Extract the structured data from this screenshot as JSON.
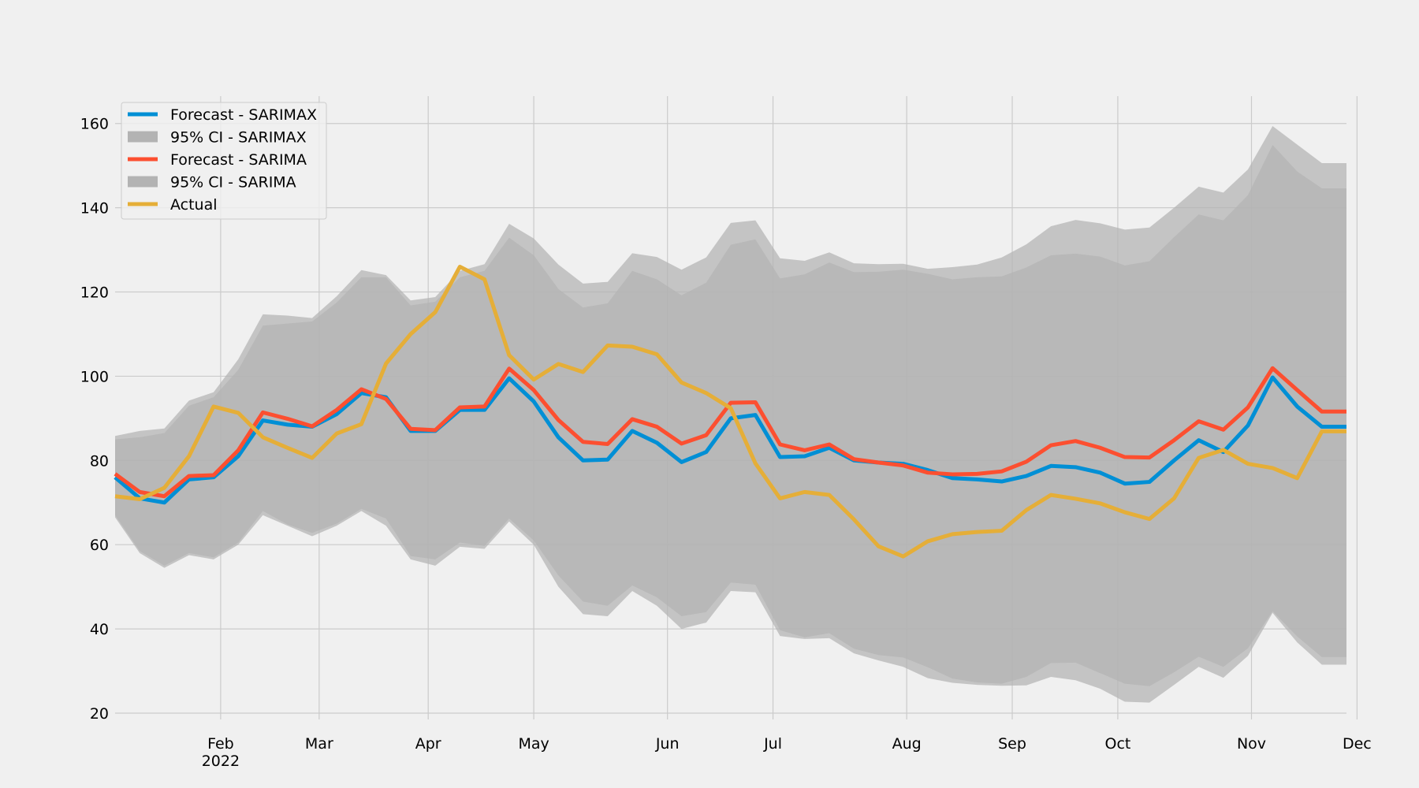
{
  "chart_data": {
    "type": "line",
    "title": "",
    "xlabel": "",
    "ylabel": "",
    "ylim": [
      18.5,
      166.5
    ],
    "xlim": [
      "2022-01-02",
      "2022-12-18"
    ],
    "grid": true,
    "legend_position": "top-left",
    "y_ticks": [
      20,
      40,
      60,
      80,
      100,
      120,
      140,
      160
    ],
    "x_ticks": [
      {
        "date": "2022-02-01",
        "label": "Feb",
        "sublabel": "2022"
      },
      {
        "date": "2022-03-01",
        "label": "Mar"
      },
      {
        "date": "2022-04-01",
        "label": "Apr"
      },
      {
        "date": "2022-05-01",
        "label": "May"
      },
      {
        "date": "2022-06-08",
        "label": "Jun"
      },
      {
        "date": "2022-07-08",
        "label": "Jul"
      },
      {
        "date": "2022-08-15",
        "label": "Aug"
      },
      {
        "date": "2022-09-14",
        "label": "Sep"
      },
      {
        "date": "2022-10-14",
        "label": "Oct"
      },
      {
        "date": "2022-11-21",
        "label": "Nov"
      },
      {
        "date": "2022-12-21",
        "label": "Dec"
      }
    ],
    "x": [
      "2022-01-02",
      "2022-01-09",
      "2022-01-16",
      "2022-01-23",
      "2022-01-30",
      "2022-02-06",
      "2022-02-13",
      "2022-02-20",
      "2022-02-27",
      "2022-03-06",
      "2022-03-13",
      "2022-03-20",
      "2022-03-27",
      "2022-04-03",
      "2022-04-10",
      "2022-04-17",
      "2022-04-24",
      "2022-05-01",
      "2022-05-08",
      "2022-05-15",
      "2022-05-22",
      "2022-05-29",
      "2022-06-05",
      "2022-06-12",
      "2022-06-19",
      "2022-06-26",
      "2022-07-03",
      "2022-07-10",
      "2022-07-17",
      "2022-07-24",
      "2022-07-31",
      "2022-08-07",
      "2022-08-14",
      "2022-08-21",
      "2022-08-28",
      "2022-09-04",
      "2022-09-11",
      "2022-09-18",
      "2022-09-25",
      "2022-10-02",
      "2022-10-09",
      "2022-10-16",
      "2022-10-23",
      "2022-10-30",
      "2022-11-06",
      "2022-11-13",
      "2022-11-20",
      "2022-11-27",
      "2022-12-04",
      "2022-12-11",
      "2022-12-18"
    ],
    "series": [
      {
        "name": "Forecast - SARIMAX",
        "kind": "line",
        "color": "#008fd5",
        "values": [
          76,
          71,
          70,
          75.5,
          76,
          81,
          89.5,
          88.5,
          88,
          91,
          96,
          95,
          87,
          87,
          92,
          92,
          99.5,
          94,
          85.5,
          80,
          80.2,
          87,
          84.2,
          79.6,
          82,
          90,
          90.8,
          80.8,
          81,
          83,
          80,
          79.5,
          79.2,
          77.7,
          75.8,
          75.5,
          75,
          76.3,
          78.7,
          78.4,
          77.1,
          74.5,
          74.9,
          80,
          84.8,
          82,
          88.3,
          99.7,
          92.8,
          88,
          88
        ]
      },
      {
        "name": "95% CI - SARIMAX",
        "kind": "band",
        "color": "#b3b3b3",
        "lower": [
          66.5,
          58,
          54.5,
          57.5,
          56.5,
          60,
          67,
          64.5,
          62,
          64.5,
          68,
          64.5,
          56.5,
          55,
          59.5,
          59,
          65.5,
          60,
          50,
          43.5,
          43,
          49,
          45.5,
          40,
          41.5,
          49,
          48.7,
          38.3,
          37.6,
          37.8,
          34.2,
          32.5,
          31,
          28.3,
          27.2,
          26.7,
          26.5,
          26.6,
          28.6,
          27.8,
          25.8,
          22.7,
          22.5,
          26.7,
          31,
          28.4,
          33.6,
          43.8,
          36.8,
          31.5,
          31.5
        ],
        "upper": [
          85.8,
          87,
          87.6,
          94.2,
          96.2,
          104,
          114.7,
          114.4,
          113.8,
          119,
          125.2,
          124,
          118,
          118.8,
          125,
          126.6,
          136.2,
          132.7,
          126.5,
          122,
          122.4,
          129.2,
          128.3,
          125.3,
          128.2,
          136.4,
          137,
          128,
          127.4,
          129.4,
          126.8,
          126.6,
          126.7,
          125.5,
          125.9,
          126.5,
          128.2,
          131.3,
          135.6,
          137.1,
          136.3,
          134.8,
          135.3,
          140,
          145,
          143.6,
          149.1,
          159.4,
          155,
          150.6,
          150.6
        ]
      },
      {
        "name": "Forecast - SARIMA",
        "kind": "line",
        "color": "#fc4f30",
        "values": [
          76.8,
          72.5,
          71.5,
          76.3,
          76.5,
          82.4,
          91.4,
          89.9,
          88.1,
          92,
          96.9,
          94.6,
          87.5,
          87.2,
          92.6,
          92.8,
          101.8,
          96.7,
          89.6,
          84.4,
          83.9,
          89.8,
          88,
          84,
          86,
          93.7,
          93.8,
          83.8,
          82.4,
          83.8,
          80.3,
          79.5,
          78.8,
          77.1,
          76.7,
          76.8,
          77.4,
          79.7,
          83.6,
          84.6,
          83,
          80.8,
          80.7,
          84.8,
          89.3,
          87.3,
          92.6,
          101.9,
          96.7,
          91.6,
          91.6
        ]
      },
      {
        "name": "95% CI - SARIMA",
        "kind": "band",
        "color": "#b3b3b3",
        "lower": [
          67,
          58.5,
          55,
          58,
          57,
          60.5,
          68,
          64.8,
          62.8,
          65,
          68.5,
          66.2,
          57.3,
          56.5,
          60.5,
          59.7,
          66.2,
          61,
          52.7,
          46.5,
          45.5,
          50.3,
          47.5,
          43,
          44,
          51,
          50.5,
          39.7,
          38,
          39,
          35.3,
          33.8,
          33.2,
          30.9,
          28.2,
          27.3,
          27,
          28.6,
          31.9,
          32,
          29.5,
          27,
          26.4,
          29.7,
          33.4,
          31,
          35.4,
          44.2,
          38.2,
          33.3,
          33.3
        ],
        "upper": [
          85,
          85.5,
          86.5,
          93,
          95,
          101.5,
          112,
          112.5,
          113,
          117.5,
          123.5,
          123.5,
          116.8,
          117.7,
          123.5,
          125,
          132.9,
          128.7,
          120.7,
          116.3,
          117.3,
          125,
          123,
          119.2,
          122.2,
          131.2,
          132.5,
          123.2,
          124.2,
          127,
          124.7,
          124.8,
          125.3,
          124.3,
          123,
          123.5,
          123.7,
          125.8,
          128.7,
          129.1,
          128.4,
          126.3,
          127.3,
          133,
          138.4,
          137,
          143,
          154.9,
          148.6,
          144.6,
          144.6
        ]
      },
      {
        "name": "Actual",
        "kind": "line",
        "color": "#e5ae38",
        "values": [
          71.5,
          70.8,
          73.5,
          81,
          92.8,
          91.3,
          85.5,
          83,
          80.6,
          86.4,
          88.6,
          103,
          110,
          115.2,
          126,
          123,
          105,
          99.2,
          102.9,
          101,
          107.3,
          107,
          105.2,
          98.5,
          96,
          92.4,
          79.3,
          71,
          72.5,
          71.8,
          66,
          59.6,
          57.2,
          60.8,
          62.5,
          63,
          63.3,
          68.2,
          71.8,
          70.9,
          69.8,
          67.7,
          66.1,
          71,
          80.6,
          82.5,
          79.2,
          78.2,
          75.8,
          86.9,
          86.9
        ]
      }
    ]
  }
}
